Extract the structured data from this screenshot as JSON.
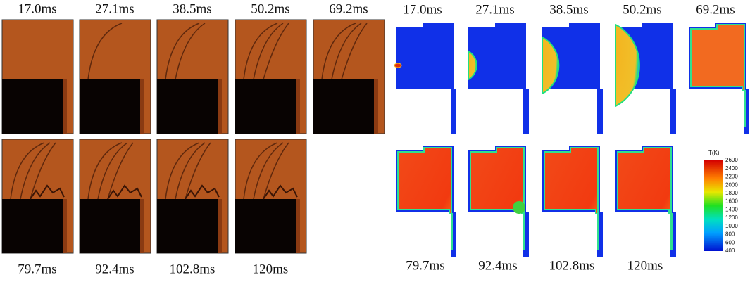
{
  "left_panel": {
    "top_labels": [
      "17.0ms",
      "27.1ms",
      "38.5ms",
      "50.2ms",
      "69.2ms"
    ],
    "bottom_labels": [
      "79.7ms",
      "92.4ms",
      "102.8ms",
      "120ms"
    ]
  },
  "right_panel": {
    "top_labels": [
      "17.0ms",
      "27.1ms",
      "38.5ms",
      "50.2ms",
      "69.2ms"
    ],
    "bottom_labels": [
      "79.7ms",
      "92.4ms",
      "102.8ms",
      "120ms"
    ],
    "colorbar": {
      "title": "T(K)",
      "ticks": [
        2600,
        2400,
        2200,
        2000,
        1800,
        1600,
        1400,
        1200,
        1000,
        800,
        600,
        400
      ]
    }
  }
}
